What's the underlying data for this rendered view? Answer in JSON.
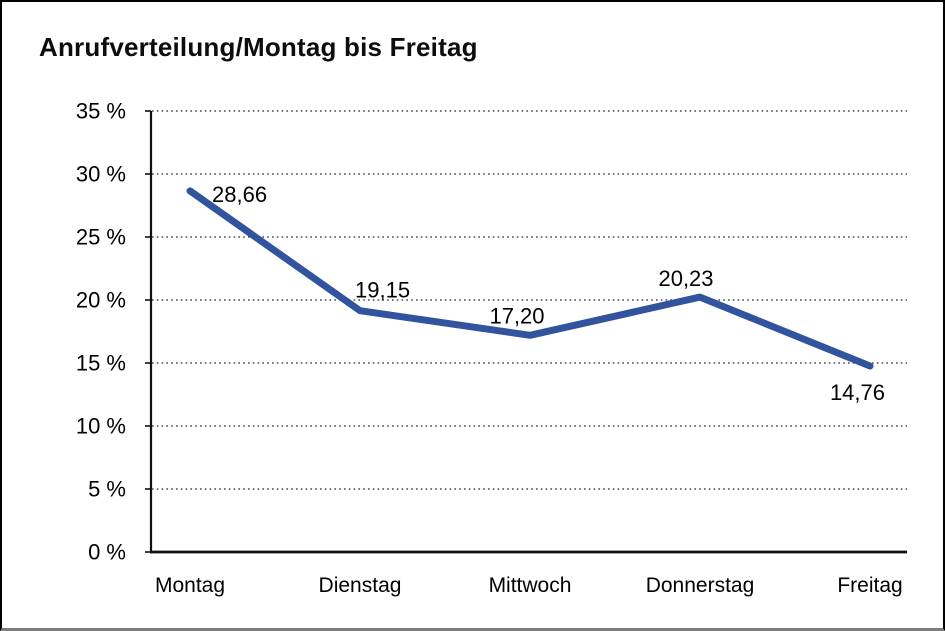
{
  "chart_data": {
    "type": "line",
    "title": "Anrufverteilung/Montag bis Freitag",
    "categories": [
      "Montag",
      "Dienstag",
      "Mittwoch",
      "Donnerstag",
      "Freitag"
    ],
    "series": [
      {
        "name": "Anrufverteilung",
        "values": [
          28.66,
          19.15,
          17.2,
          20.23,
          14.76
        ],
        "value_labels": [
          "28,66",
          "19,15",
          "17,20",
          "20,23",
          "14,76"
        ]
      }
    ],
    "ylabel": "",
    "xlabel": "",
    "ylim": [
      0,
      35
    ],
    "ytick_step": 5,
    "ytick_labels": [
      "0 %",
      "5 %",
      "10 %",
      "15 %",
      "20 %",
      "25 %",
      "30 %",
      "35 %"
    ],
    "grid": "horizontal-dotted",
    "legend": "none",
    "line_color": "#32539E",
    "grid_color": "#4a4a4a",
    "axis_color": "#111111",
    "text_color": "#000000"
  }
}
